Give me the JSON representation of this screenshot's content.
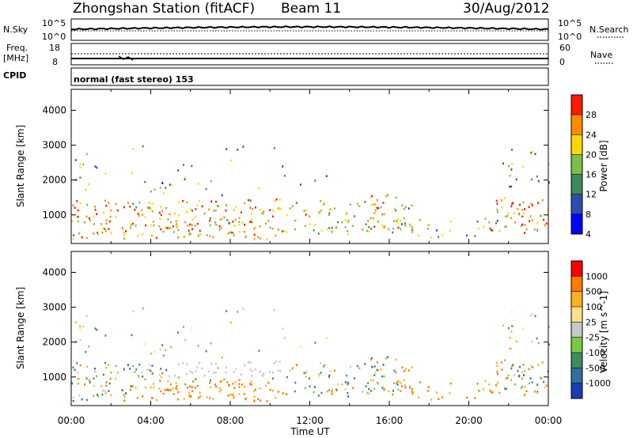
{
  "header": {
    "title": "Zhongshan Station (fitACF)",
    "beam": "Beam 11",
    "date": "30/Aug/2012"
  },
  "strips": {
    "nsky_label": "N.Sky",
    "nsky_top": "10^5",
    "nsky_bottom": "10^0",
    "nsearch_label": "N.Search",
    "nsearch_top": "10^5",
    "nsearch_bottom": "10^0",
    "freq_label_1": "Freq.",
    "freq_label_2": "[MHz]",
    "freq_top": "18",
    "freq_bottom": "8",
    "nave_label": "Nave",
    "nave_top": "60",
    "nave_bottom": "0",
    "cpid_label": "CPID",
    "cpid_value": "normal (fast stereo) 153"
  },
  "chart_data": [
    {
      "type": "heatmap",
      "quantity": "power",
      "ylabel": "Slant Range [km]",
      "ylim": [
        180,
        4600
      ],
      "yticks": [
        "1000",
        "2000",
        "3000",
        "4000"
      ],
      "xlim_hours": [
        0,
        24
      ],
      "xticks": [
        "00:00",
        "04:00",
        "08:00",
        "12:00",
        "16:00",
        "20:00",
        "00:00"
      ],
      "xlabel": "Time UT",
      "colorbar_label": "Power [dB]",
      "colorbar_ticks": [
        "4",
        "8",
        "12",
        "16",
        "20",
        "24",
        "28"
      ],
      "colorbar_colors": [
        "#0000ff",
        "#2e4cb0",
        "#3b8a5a",
        "#7dbd48",
        "#ffd800",
        "#ff8c00",
        "#ff1a00"
      ]
    },
    {
      "type": "heatmap",
      "quantity": "velocity",
      "ylabel": "Slant Range [km]",
      "ylim": [
        180,
        4600
      ],
      "yticks": [
        "1000",
        "2000",
        "3000",
        "4000"
      ],
      "xlim_hours": [
        0,
        24
      ],
      "xticks": [
        "00:00",
        "04:00",
        "08:00",
        "12:00",
        "16:00",
        "20:00",
        "00:00"
      ],
      "xlabel": "Time UT",
      "colorbar_label": "Velocity [m s^-1]",
      "colorbar_ticks": [
        "1000",
        "500",
        "100",
        "25",
        "-25",
        "-100",
        "-500",
        "-1000"
      ],
      "colorbar_colors": [
        "#1a3cb4",
        "#2f6fa0",
        "#3d8c5c",
        "#7ac943",
        "#c8c8c8",
        "#ffe08a",
        "#ffb020",
        "#ff7a00",
        "#ff0000"
      ]
    }
  ]
}
